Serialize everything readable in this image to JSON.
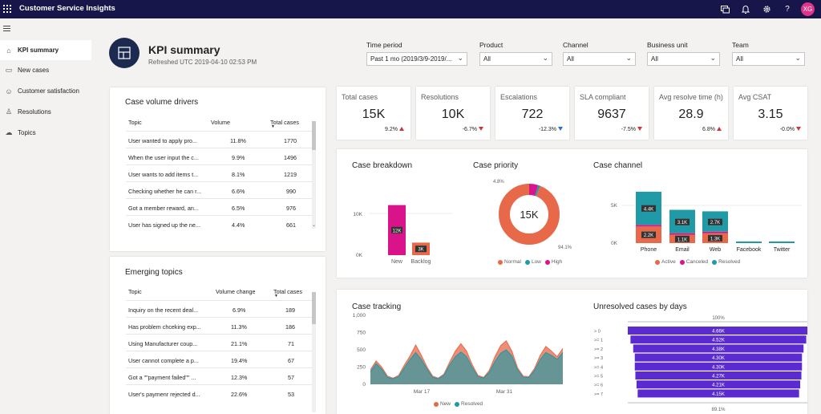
{
  "app": {
    "title": "Customer Service Insights",
    "user_initials": "XG"
  },
  "sidebar": {
    "items": [
      {
        "label": "KPI summary",
        "icon": "home-icon",
        "active": true
      },
      {
        "label": "New cases",
        "icon": "cases-icon",
        "active": false
      },
      {
        "label": "Customer satisfaction",
        "icon": "smiley-icon",
        "active": false
      },
      {
        "label": "Resolutions",
        "icon": "person-check-icon",
        "active": false
      },
      {
        "label": "Topics",
        "icon": "topics-icon",
        "active": false
      }
    ]
  },
  "header": {
    "title": "KPI summary",
    "refreshed": "Refreshed UTC 2019-04-10 02:53 PM"
  },
  "filters": [
    {
      "label": "Time period",
      "value": "Past 1 mo (2019/3/9-2019/..."
    },
    {
      "label": "Product",
      "value": "All"
    },
    {
      "label": "Channel",
      "value": "All"
    },
    {
      "label": "Business unit",
      "value": "All"
    },
    {
      "label": "Team",
      "value": "All"
    }
  ],
  "volume_drivers": {
    "title": "Case volume drivers",
    "headers": [
      "Topic",
      "Volume",
      "Total cases"
    ],
    "rows": [
      [
        "User wanted to apply pro...",
        "11.8%",
        "1770"
      ],
      [
        "When the user input the c...",
        "9.9%",
        "1496"
      ],
      [
        "User wants to add items t...",
        "8.1%",
        "1219"
      ],
      [
        "Checking whether he can r...",
        "6.6%",
        "990"
      ],
      [
        "Got a member reward, an...",
        "6.5%",
        "976"
      ],
      [
        "User has signed up the ne...",
        "4.4%",
        "661"
      ]
    ]
  },
  "emerging_topics": {
    "title": "Emerging topics",
    "headers": [
      "Topic",
      "Volume change",
      "Total cases"
    ],
    "rows": [
      [
        "Inquiry on the recent deal...",
        "6.9%",
        "189"
      ],
      [
        "Has problem chceking exp...",
        "11.3%",
        "186"
      ],
      [
        "Using Manufacturer coup...",
        "21.1%",
        "71"
      ],
      [
        "User cannot complete a p...",
        "19.4%",
        "67"
      ],
      [
        "Got a \"\"payment failed\"\" ...",
        "12.3%",
        "57"
      ],
      [
        "User's paymenr rejected d...",
        "22.6%",
        "53"
      ]
    ]
  },
  "kpis": [
    {
      "label": "Total cases",
      "value": "15K",
      "delta": "9.2%",
      "trend": "up"
    },
    {
      "label": "Resolutions",
      "value": "10K",
      "delta": "-6.7%",
      "trend": "down-red"
    },
    {
      "label": "Escalations",
      "value": "722",
      "delta": "-12.3%",
      "trend": "down-blue"
    },
    {
      "label": "SLA compliant",
      "value": "9637",
      "delta": "-7.5%",
      "trend": "down-red"
    },
    {
      "label": "Avg resolve time (h)",
      "value": "28.9",
      "delta": "6.8%",
      "trend": "up"
    },
    {
      "label": "Avg CSAT",
      "value": "3.15",
      "delta": "-0.0%",
      "trend": "down-red"
    }
  ],
  "colors": {
    "magenta": "#d9148a",
    "orange": "#e8684a",
    "teal": "#1f9aa6",
    "purple": "#5b2bd1",
    "navy": "#16164a"
  },
  "chart_data": [
    {
      "title": "Case breakdown",
      "type": "bar",
      "categories": [
        "New",
        "Backlog"
      ],
      "values": [
        12000,
        3000
      ],
      "value_labels": [
        "12K",
        "3K"
      ],
      "yticks": [
        "10K",
        "0K"
      ],
      "ylim": [
        0,
        15000
      ]
    },
    {
      "title": "Case priority",
      "type": "pie",
      "center_label": "15K",
      "slices": [
        {
          "name": "Normal",
          "value": 94.1
        },
        {
          "name": "Low",
          "value": 1.1
        },
        {
          "name": "High",
          "value": 4.8
        }
      ],
      "slice_labels": [
        "94.1%",
        "4.8%"
      ],
      "legend": [
        "Normal",
        "Low",
        "High"
      ]
    },
    {
      "title": "Case channel",
      "type": "bar",
      "categories": [
        "Phone",
        "Email",
        "Web",
        "Facebook",
        "Twitter"
      ],
      "series": [
        {
          "name": "Active",
          "values": [
            2200,
            1100,
            1300,
            0,
            0
          ]
        },
        {
          "name": "Canceled",
          "values": [
            200,
            150,
            150,
            0,
            0
          ]
        },
        {
          "name": "Resolved",
          "values": [
            4400,
            3100,
            2700,
            200,
            200
          ]
        }
      ],
      "value_labels": {
        "Phone": [
          "2.2K",
          "4.4K"
        ],
        "Email": [
          "1.1K",
          "3.1K"
        ],
        "Web": [
          "1.3K",
          "2.7K"
        ]
      },
      "yticks": [
        "5K",
        "0K"
      ],
      "ylim": [
        0,
        7000
      ],
      "legend": [
        "Active",
        "Canceled",
        "Resolved"
      ]
    },
    {
      "title": "Case tracking",
      "type": "area",
      "x_labels": [
        "Mar 17",
        "Mar 31"
      ],
      "yticks": [
        "1,000",
        "750",
        "500",
        "250",
        "0"
      ],
      "ylim": [
        0,
        1000
      ],
      "series": [
        {
          "name": "New",
          "values": [
            210,
            340,
            250,
            120,
            90,
            130,
            280,
            410,
            570,
            420,
            250,
            120,
            90,
            150,
            320,
            480,
            590,
            480,
            280,
            130,
            100,
            200,
            400,
            560,
            630,
            480,
            240,
            120,
            110,
            230,
            420,
            550,
            480,
            400,
            520
          ]
        },
        {
          "name": "Resolved",
          "values": [
            180,
            300,
            220,
            100,
            80,
            110,
            240,
            360,
            460,
            360,
            220,
            100,
            80,
            130,
            280,
            400,
            470,
            400,
            240,
            110,
            90,
            170,
            330,
            450,
            500,
            410,
            210,
            100,
            100,
            200,
            360,
            460,
            420,
            360,
            460
          ]
        }
      ],
      "legend": [
        "New",
        "Resolved"
      ]
    },
    {
      "title": "Unresolved cases by days",
      "type": "bar",
      "top_label": "100%",
      "bottom_label": "89.1%",
      "categories": [
        "> 0",
        ">= 1",
        ">= 2",
        ">= 3",
        ">= 4",
        ">= 5",
        ">= 6",
        ">= 7"
      ],
      "values": [
        4660,
        4520,
        4380,
        4300,
        4300,
        4270,
        4210,
        4150
      ],
      "value_labels": [
        "4.66K",
        "4.52K",
        "4.38K",
        "4.30K",
        "4.30K",
        "4.27K",
        "4.21K",
        "4.15K"
      ]
    }
  ]
}
